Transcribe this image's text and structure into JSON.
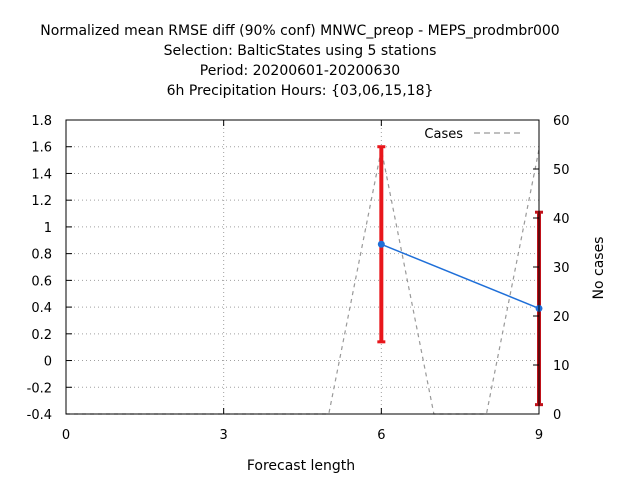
{
  "chart_data": {
    "type": "line",
    "title_lines": [
      "Normalized mean RMSE diff (90% conf) MNWC_preop - MEPS_prodmbr000",
      "Selection: BalticStates using     5 stations",
      "Period: 20200601-20200630",
      "6h Precipitation    Hours: {03,06,15,18}"
    ],
    "xlabel": "Forecast length",
    "ylabel": "",
    "y2label": "No cases",
    "x_ticks": [
      "0",
      "3",
      "6",
      "9"
    ],
    "y_ticks": [
      "-0.4",
      "-0.2",
      "0",
      "0.2",
      "0.4",
      "0.6",
      "0.8",
      "1",
      "1.2",
      "1.4",
      "1.6",
      "1.8"
    ],
    "y2_ticks": [
      "0",
      "10",
      "20",
      "30",
      "40",
      "50",
      "60"
    ],
    "xlim": [
      0,
      9
    ],
    "ylim": [
      -0.4,
      1.8
    ],
    "y2lim": [
      0,
      60
    ],
    "grid": true,
    "legend_position": "top-right",
    "series": [
      {
        "name": "",
        "color": "#1f6fd8",
        "x": [
          6,
          9
        ],
        "y": [
          0.87,
          0.39
        ],
        "err_low": [
          0.14,
          -0.33
        ],
        "err_high": [
          1.6,
          1.11
        ],
        "err_colors": [
          "#e8161b",
          "#c0121a"
        ]
      },
      {
        "name": "Cases",
        "color": "#999999",
        "dashed": true,
        "axis": "y2",
        "x": [
          0,
          1,
          2,
          3,
          4,
          5,
          6,
          7,
          8,
          9
        ],
        "y": [
          0,
          0,
          0,
          0,
          0,
          0,
          54,
          0,
          0,
          54
        ]
      }
    ]
  }
}
